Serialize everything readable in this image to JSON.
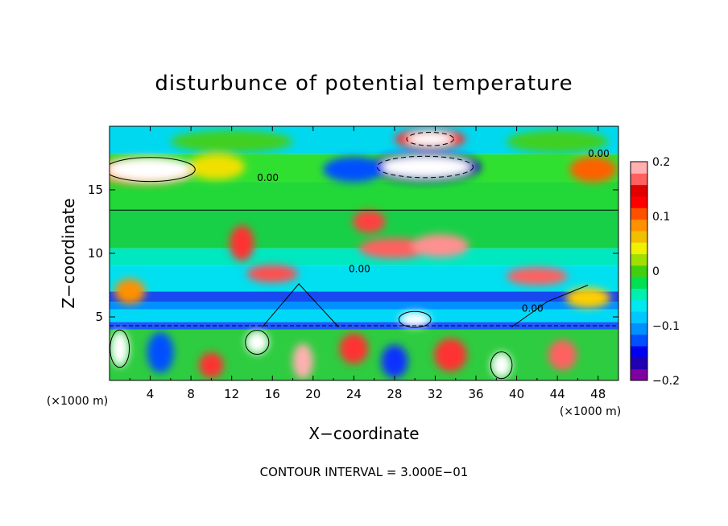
{
  "chart_data": {
    "type": "heatmap",
    "title": "disturbunce of potential temperature",
    "xlabel": "X−coordinate",
    "ylabel": "Z−coordinate",
    "x_unit_left": "(×1000 m)",
    "x_unit_right": "(×1000 m)",
    "xlim": [
      0,
      50
    ],
    "ylim": [
      0,
      20
    ],
    "x_ticks": [
      "4",
      "8",
      "12",
      "16",
      "20",
      "24",
      "28",
      "32",
      "36",
      "40",
      "44",
      "48"
    ],
    "y_ticks": [
      "5",
      "10",
      "15"
    ],
    "colorbar": {
      "range": [
        -0.2,
        0.2
      ],
      "tick_labels": [
        "0.2",
        "0.1",
        "0",
        "−0.1",
        "−0.2"
      ],
      "tick_values": [
        0.2,
        0.1,
        0,
        -0.1,
        -0.2
      ],
      "colors": [
        "#7f00a0",
        "#2000b0",
        "#0000f0",
        "#0050ff",
        "#0090ff",
        "#00c8ff",
        "#00e8f0",
        "#00f0b0",
        "#00e050",
        "#40d010",
        "#a0e000",
        "#f0f000",
        "#f0c000",
        "#ff9000",
        "#ff5000",
        "#ff0000",
        "#e00000",
        "#ff6060",
        "#ffb0b0"
      ]
    },
    "contour_labels": [
      "0.00",
      "0.00",
      "0.00",
      "0.00"
    ],
    "footer": "CONTOUR INTERVAL = 3.000E−01",
    "bands": [
      {
        "z0": 0,
        "z1": 4.0,
        "color": "#2ecc40"
      },
      {
        "z0": 4.0,
        "z1": 4.6,
        "color": "#1e58ff"
      },
      {
        "z0": 4.6,
        "z1": 5.6,
        "color": "#00d8f8"
      },
      {
        "z0": 5.6,
        "z1": 6.2,
        "color": "#0090ff"
      },
      {
        "z0": 6.2,
        "z1": 7.0,
        "color": "#1848f0"
      },
      {
        "z0": 7.0,
        "z1": 9.0,
        "color": "#00e0f0"
      },
      {
        "z0": 9.0,
        "z1": 10.4,
        "color": "#00e8c0"
      },
      {
        "z0": 10.4,
        "z1": 13.4,
        "color": "#18d048"
      },
      {
        "z0": 13.4,
        "z1": 15.6,
        "color": "#22d838"
      },
      {
        "z0": 15.6,
        "z1": 17.8,
        "color": "#30e030"
      },
      {
        "z0": 17.8,
        "z1": 20,
        "color": "#00d8f0"
      }
    ],
    "blobs": [
      {
        "x": 3.5,
        "z": 16.5,
        "rx": 5.0,
        "rz": 1.1,
        "color": "#ff9000"
      },
      {
        "x": 4.0,
        "z": 16.6,
        "rx": 4.2,
        "rz": 0.9,
        "color": "#ffffff"
      },
      {
        "x": 10.5,
        "z": 16.8,
        "rx": 2.8,
        "rz": 1.0,
        "color": "#f0e000"
      },
      {
        "x": 31.0,
        "z": 16.8,
        "rx": 5.5,
        "rz": 1.2,
        "color": "#2000c0"
      },
      {
        "x": 31.0,
        "z": 16.8,
        "rx": 4.5,
        "rz": 0.8,
        "color": "#ffffff"
      },
      {
        "x": 24.0,
        "z": 16.6,
        "rx": 3.0,
        "rz": 1.0,
        "color": "#0050ff"
      },
      {
        "x": 31.5,
        "z": 19.0,
        "rx": 3.5,
        "rz": 0.8,
        "color": "#ff3030"
      },
      {
        "x": 31.5,
        "z": 19.0,
        "rx": 2.2,
        "rz": 0.5,
        "color": "#ffffff"
      },
      {
        "x": 12.0,
        "z": 18.8,
        "rx": 6.0,
        "rz": 0.9,
        "color": "#40d020"
      },
      {
        "x": 44.0,
        "z": 18.8,
        "rx": 5.0,
        "rz": 0.9,
        "color": "#40d020"
      },
      {
        "x": 47.5,
        "z": 16.6,
        "rx": 2.3,
        "rz": 1.0,
        "color": "#ff6000"
      },
      {
        "x": 13.0,
        "z": 10.8,
        "rx": 1.2,
        "rz": 1.4,
        "color": "#ff3030"
      },
      {
        "x": 25.5,
        "z": 12.5,
        "rx": 1.6,
        "rz": 0.9,
        "color": "#ff4040"
      },
      {
        "x": 28.0,
        "z": 10.4,
        "rx": 3.5,
        "rz": 0.8,
        "color": "#ff6060"
      },
      {
        "x": 32.5,
        "z": 10.6,
        "rx": 2.8,
        "rz": 0.9,
        "color": "#ff9090"
      },
      {
        "x": 16.0,
        "z": 8.4,
        "rx": 2.5,
        "rz": 0.7,
        "color": "#ff5050"
      },
      {
        "x": 42.0,
        "z": 8.2,
        "rx": 3.0,
        "rz": 0.7,
        "color": "#ff6060"
      },
      {
        "x": 2.0,
        "z": 7.0,
        "rx": 1.5,
        "rz": 1.0,
        "color": "#ff9000"
      },
      {
        "x": 47.0,
        "z": 6.5,
        "rx": 2.2,
        "rz": 0.8,
        "color": "#ffd000"
      },
      {
        "x": 30.0,
        "z": 4.8,
        "rx": 1.5,
        "rz": 0.6,
        "color": "#ffffff"
      },
      {
        "x": 24.0,
        "z": 2.5,
        "rx": 1.4,
        "rz": 1.2,
        "color": "#ff3030"
      },
      {
        "x": 19.0,
        "z": 1.5,
        "rx": 1.0,
        "rz": 1.4,
        "color": "#ffb0b0"
      },
      {
        "x": 28.0,
        "z": 1.5,
        "rx": 1.3,
        "rz": 1.3,
        "color": "#1030ff"
      },
      {
        "x": 33.5,
        "z": 2.0,
        "rx": 1.6,
        "rz": 1.3,
        "color": "#ff3030"
      },
      {
        "x": 38.5,
        "z": 1.2,
        "rx": 1.0,
        "rz": 1.0,
        "color": "#ffffff"
      },
      {
        "x": 44.5,
        "z": 2.0,
        "rx": 1.4,
        "rz": 1.2,
        "color": "#ff6060"
      },
      {
        "x": 5.0,
        "z": 2.2,
        "rx": 1.3,
        "rz": 1.6,
        "color": "#0050ff"
      },
      {
        "x": 10.0,
        "z": 1.2,
        "rx": 1.2,
        "rz": 1.0,
        "color": "#ff3030"
      },
      {
        "x": 14.5,
        "z": 3.0,
        "rx": 1.1,
        "rz": 0.9,
        "color": "#ffffff"
      },
      {
        "x": 1.0,
        "z": 2.5,
        "rx": 0.9,
        "rz": 1.4,
        "color": "#ffffff"
      }
    ]
  }
}
